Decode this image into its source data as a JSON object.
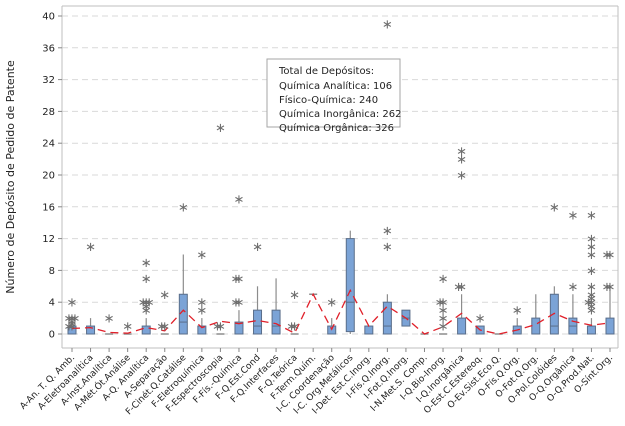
{
  "chart_data": {
    "type": "boxplot",
    "title": "",
    "xlabel": "",
    "ylabel": "Número de Depósito de Pedido de Patente",
    "ylim": [
      0,
      41
    ],
    "yticks": [
      0,
      4,
      8,
      12,
      16,
      20,
      24,
      28,
      32,
      36,
      40
    ],
    "grid": "horizontal-dashed",
    "colors": {
      "box_fill": "#7BA3D6",
      "box_stroke": "#5A6E8A",
      "whisker": "#8C8C8C",
      "outlier": "#6E6E6E",
      "mean_line": "#E0202A",
      "grid": "#D9D9D9",
      "axis": "#BFBFBF"
    },
    "legend_box": {
      "title": "Total de Depósitos:",
      "lines": [
        "Química Analítica: 106",
        "Físico-Química: 240",
        "Química Inorgânica: 262",
        "Química Orgânica: 326"
      ],
      "placement": "top-center"
    },
    "categories": [
      "A-An. T. Q. Amb.",
      "A-Eletroanalítica",
      "A-Inst.Analítica",
      "A-Mét.Ót.Análise",
      "A-Q. Analítica",
      "A-Separação",
      "F-Cinét.Q.Catálise",
      "F-Eletroquímica",
      "F-Espectroscopia",
      "F-Fís.-Química",
      "F-Q.Est.Cond",
      "F-Q.Interfaces",
      "F-Q.Teórica",
      "F-Term.Quím.",
      "I-C. Coordenação",
      "I-C. Org.Metálicos",
      "I-Det. Est.C.Inorg.",
      "I-Fís.Q.Inorg.",
      "I-Fot.Q.Inorg.",
      "I-N.Met.S. Comp.",
      "I-Q.Bio-Inorg.",
      "I-Q.Inorgânica",
      "O-Est.C.Estereoq.",
      "O-Ev.Sist.Eco.Q.",
      "O-Fís.Q.Org.",
      "O-Fot.Q.Org.",
      "O-Pol.Colóides",
      "O-Q.Orgânica",
      "O-Q.Prod.Nat.",
      "O-Sínt.Org."
    ],
    "boxes": [
      {
        "q1": 0,
        "median": 0,
        "q3": 1,
        "whisker_low": 0,
        "whisker_high": 1,
        "mean": 0.7,
        "outliers": [
          1,
          1,
          1.3,
          1.6,
          2,
          2,
          2,
          4
        ]
      },
      {
        "q1": 0,
        "median": 0,
        "q3": 1,
        "whisker_low": 0,
        "whisker_high": 2,
        "mean": 0.8,
        "outliers": [
          11
        ]
      },
      {
        "q1": 0,
        "median": 0,
        "q3": 0,
        "whisker_low": 0,
        "whisker_high": 0,
        "mean": 0.2,
        "outliers": [
          2
        ]
      },
      {
        "q1": 0,
        "median": 0,
        "q3": 0,
        "whisker_low": 0,
        "whisker_high": 0,
        "mean": 0.1,
        "outliers": [
          1
        ]
      },
      {
        "q1": 0,
        "median": 0,
        "q3": 1,
        "whisker_low": 0,
        "whisker_high": 2,
        "mean": 0.8,
        "outliers": [
          3,
          3.5,
          4,
          4,
          4,
          7,
          9
        ]
      },
      {
        "q1": 0,
        "median": 0,
        "q3": 0,
        "whisker_low": 0,
        "whisker_high": 0,
        "mean": 0.4,
        "outliers": [
          1,
          1,
          5
        ]
      },
      {
        "q1": 0,
        "median": 1.5,
        "q3": 5,
        "whisker_low": 0,
        "whisker_high": 10,
        "mean": 3,
        "outliers": [
          16
        ]
      },
      {
        "q1": 0,
        "median": 0,
        "q3": 1,
        "whisker_low": 0,
        "whisker_high": 2,
        "mean": 0.8,
        "outliers": [
          3,
          4,
          10
        ]
      },
      {
        "q1": 0,
        "median": 0,
        "q3": 0,
        "whisker_low": 0,
        "whisker_high": 0,
        "mean": 1.6,
        "outliers": [
          1,
          1,
          26
        ]
      },
      {
        "q1": 0,
        "median": 0,
        "q3": 1.5,
        "whisker_low": 0,
        "whisker_high": 3,
        "mean": 1.3,
        "outliers": [
          4,
          4,
          7,
          7,
          17
        ]
      },
      {
        "q1": 0,
        "median": 1,
        "q3": 3,
        "whisker_low": 0,
        "whisker_high": 6,
        "mean": 1.7,
        "outliers": [
          11
        ]
      },
      {
        "q1": 0,
        "median": 1,
        "q3": 3,
        "whisker_low": 0,
        "whisker_high": 7,
        "mean": 1.3,
        "outliers": []
      },
      {
        "q1": 0,
        "median": 0,
        "q3": 0,
        "whisker_low": 0,
        "whisker_high": 0,
        "mean": 0.1,
        "outliers": [
          1,
          1,
          5
        ]
      },
      {
        "q1": 5,
        "median": 5,
        "q3": 5,
        "whisker_low": 5,
        "whisker_high": 5,
        "mean": 5,
        "outliers": []
      },
      {
        "q1": 0,
        "median": 0,
        "q3": 1,
        "whisker_low": 0,
        "whisker_high": 2,
        "mean": 0.6,
        "outliers": [
          4
        ]
      },
      {
        "q1": 0.3,
        "median": 4,
        "q3": 12,
        "whisker_low": 0,
        "whisker_high": 13,
        "mean": 5.5,
        "outliers": []
      },
      {
        "q1": 0,
        "median": 0,
        "q3": 1,
        "whisker_low": 0,
        "whisker_high": 1,
        "mean": 1,
        "outliers": []
      },
      {
        "q1": 0,
        "median": 1,
        "q3": 4,
        "whisker_low": 0,
        "whisker_high": 5,
        "mean": 3.5,
        "outliers": [
          11,
          13,
          39
        ]
      },
      {
        "q1": 1,
        "median": 2,
        "q3": 3,
        "whisker_low": 1,
        "whisker_high": 3,
        "mean": 2,
        "outliers": []
      },
      {
        "q1": 0,
        "median": 0,
        "q3": 0,
        "whisker_low": 0,
        "whisker_high": 0,
        "mean": 0,
        "outliers": []
      },
      {
        "q1": 0,
        "median": 0,
        "q3": 0,
        "whisker_low": 0,
        "whisker_high": 0,
        "mean": 0.9,
        "outliers": [
          1,
          2,
          3,
          4,
          4,
          7
        ]
      },
      {
        "q1": 0,
        "median": 0,
        "q3": 2,
        "whisker_low": 0,
        "whisker_high": 5,
        "mean": 2.6,
        "outliers": [
          6,
          6,
          20,
          22,
          23
        ]
      },
      {
        "q1": 0,
        "median": 0,
        "q3": 1,
        "whisker_low": 0,
        "whisker_high": 1,
        "mean": 0.5,
        "outliers": [
          2
        ]
      },
      {
        "q1": 0,
        "median": 0,
        "q3": 0,
        "whisker_low": 0,
        "whisker_high": 0,
        "mean": 0,
        "outliers": []
      },
      {
        "q1": 0,
        "median": 0,
        "q3": 1,
        "whisker_low": 0,
        "whisker_high": 2,
        "mean": 0.5,
        "outliers": [
          3
        ]
      },
      {
        "q1": 0,
        "median": 0,
        "q3": 2,
        "whisker_low": 0,
        "whisker_high": 5,
        "mean": 1.2,
        "outliers": []
      },
      {
        "q1": 0,
        "median": 1,
        "q3": 5,
        "whisker_low": 0,
        "whisker_high": 6,
        "mean": 2.6,
        "outliers": [
          16
        ]
      },
      {
        "q1": 0,
        "median": 1,
        "q3": 2,
        "whisker_low": 0,
        "whisker_high": 5,
        "mean": 1.6,
        "outliers": [
          6,
          15
        ]
      },
      {
        "q1": 0,
        "median": 0,
        "q3": 1,
        "whisker_low": 0,
        "whisker_high": 2,
        "mean": 1.1,
        "outliers": [
          3,
          3.5,
          4,
          4,
          4.5,
          5,
          6,
          8,
          10,
          11,
          12,
          15
        ]
      },
      {
        "q1": 0,
        "median": 0,
        "q3": 2,
        "whisker_low": 0,
        "whisker_high": 6,
        "mean": 1.4,
        "outliers": [
          6,
          6,
          10,
          10
        ]
      }
    ]
  }
}
